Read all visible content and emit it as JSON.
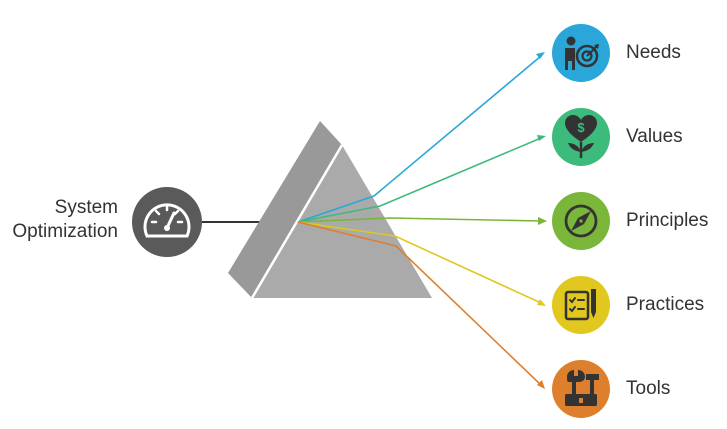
{
  "input": {
    "line1": "System",
    "line2": "Optimization",
    "icon": "speedometer-icon",
    "color": "#5a5a5a"
  },
  "prism": {
    "front_color": "#aaaaaa",
    "side_color": "#999999",
    "edge_color": "#ffffff"
  },
  "outputs": [
    {
      "label": "Needs",
      "icon": "person-target-icon",
      "color": "#2aa7d8"
    },
    {
      "label": "Values",
      "icon": "heart-dollar-plant-icon",
      "color": "#3dbb7c"
    },
    {
      "label": "Principles",
      "icon": "compass-icon",
      "color": "#7ab63a"
    },
    {
      "label": "Practices",
      "icon": "checklist-pen-icon",
      "color": "#e0c81f"
    },
    {
      "label": "Tools",
      "icon": "hammer-wrench-icon",
      "color": "#dd7f2d"
    }
  ]
}
